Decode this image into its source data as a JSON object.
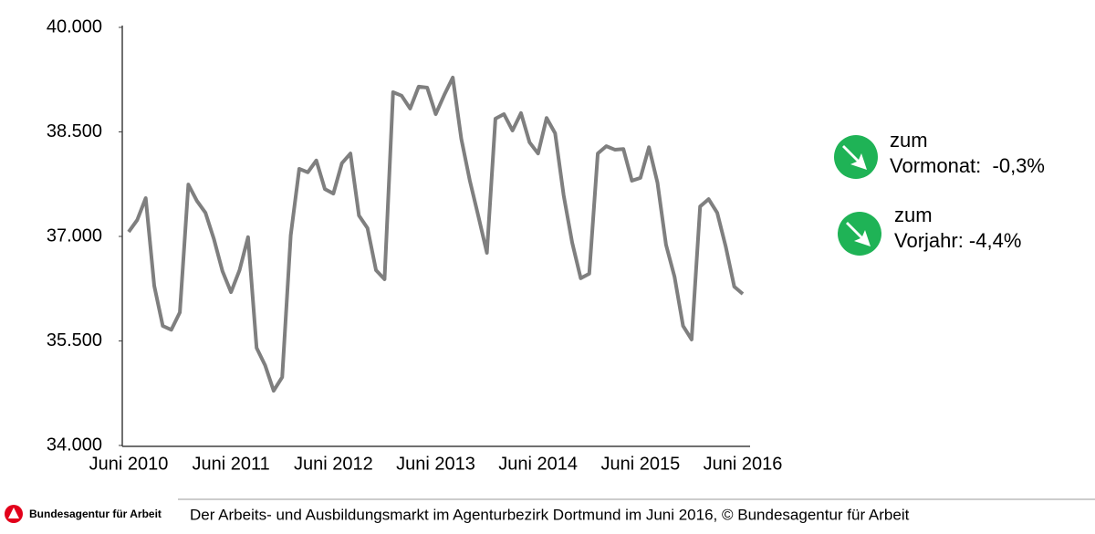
{
  "chart_data": {
    "type": "line",
    "categories": [
      "Juni 2010",
      null,
      null,
      null,
      null,
      null,
      null,
      null,
      null,
      null,
      null,
      null,
      "Juni 2011",
      null,
      null,
      null,
      null,
      null,
      null,
      null,
      null,
      null,
      null,
      null,
      "Juni 2012",
      null,
      null,
      null,
      null,
      null,
      null,
      null,
      null,
      null,
      null,
      null,
      "Juni 2013",
      null,
      null,
      null,
      null,
      null,
      null,
      null,
      null,
      null,
      null,
      null,
      "Juni 2014",
      null,
      null,
      null,
      null,
      null,
      null,
      null,
      null,
      null,
      null,
      null,
      "Juni 2015",
      null,
      null,
      null,
      null,
      null,
      null,
      null,
      null,
      null,
      null,
      null,
      "Juni 2016"
    ],
    "series": [
      {
        "color": "#7f7f7f",
        "values": [
          37065,
          37235,
          37550,
          36290,
          35715,
          35660,
          35910,
          37745,
          37510,
          37340,
          36960,
          36500,
          36200,
          36515,
          36990,
          35400,
          35150,
          34785,
          34980,
          37015,
          37970,
          37920,
          38090,
          37680,
          37615,
          38050,
          38190,
          37300,
          37120,
          36515,
          36385,
          39070,
          39020,
          38835,
          39150,
          39135,
          38755,
          39030,
          39280,
          38400,
          37800,
          37290,
          36765,
          38690,
          38755,
          38520,
          38770,
          38350,
          38190,
          38700,
          38480,
          37590,
          36910,
          36400,
          36465,
          38190,
          38295,
          38245,
          38255,
          37800,
          37840,
          38280,
          37770,
          36880,
          36420,
          35715,
          35520,
          37430,
          37535,
          37340,
          36855,
          36280,
          36175
        ]
      }
    ],
    "ylim": [
      34000,
      40000
    ],
    "yticks": [
      {
        "value": 34000,
        "label": "34.000"
      },
      {
        "value": 35500,
        "label": "35.500"
      },
      {
        "value": 37000,
        "label": "37.000"
      },
      {
        "value": 38500,
        "label": "38.500"
      },
      {
        "value": 40000,
        "label": "40.000"
      }
    ],
    "grid": false,
    "annotations": [
      {
        "lines": [
          "zum",
          "Vormonat:  -0,3%"
        ]
      },
      {
        "lines": [
          "zum",
          "Vorjahr: -4,4%"
        ]
      }
    ]
  },
  "footer": {
    "logo_text": "Bundesagentur für Arbeit",
    "caption": "Der Arbeits- und Ausbildungsmarkt im Agenturbezirk Dortmund im Juni 2016, © Bundesagentur für Arbeit"
  }
}
